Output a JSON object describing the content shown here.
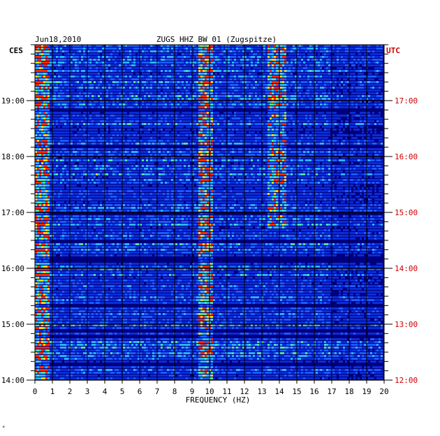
{
  "chart_data": {
    "type": "heatmap",
    "title": "ZUGS HHZ BW 01 (Zugspitze)",
    "date": "Jun18,2010",
    "xlabel": "FREQUENCY (HZ)",
    "left_axis_label": "CES",
    "right_axis_label": "UTC",
    "x_range": [
      0,
      20
    ],
    "x_ticks": [
      "0",
      "1",
      "2",
      "3",
      "4",
      "5",
      "6",
      "7",
      "8",
      "9",
      "10",
      "11",
      "12",
      "13",
      "14",
      "15",
      "16",
      "17",
      "18",
      "19",
      "20"
    ],
    "left_ticks": [
      "19:00",
      "18:00",
      "17:00",
      "16:00",
      "15:00",
      "14:00"
    ],
    "right_ticks": [
      "17:00",
      "16:00",
      "15:00",
      "14:00",
      "13:00",
      "12:00"
    ],
    "grid": true,
    "colors": {
      "low": "#00007c",
      "mid": "#1a5cff",
      "high": "#55e0a0",
      "peak": "#ffd21a",
      "extreme": "#ff2a00",
      "right_axis": "#cc0000",
      "grid": "#000000"
    }
  },
  "footer_mark": "*"
}
